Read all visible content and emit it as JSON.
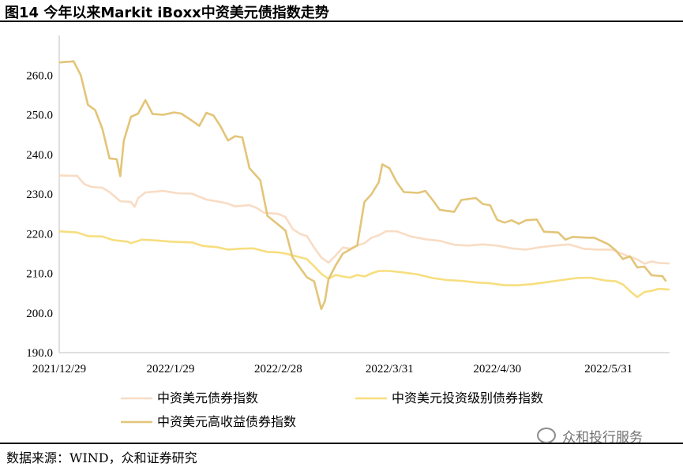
{
  "figure_title": "图14 今年以来Markit iBoxx中资美元债指数走势",
  "source_note": "数据来源：WIND，众和证券研究",
  "watermark": "众和投行服务",
  "colors": {
    "series1": "#F8DCC4",
    "series2": "#F7DE7E",
    "series3": "#E3C578"
  },
  "chart_data": {
    "type": "line",
    "title": "",
    "xlabel": "",
    "ylabel": "",
    "ylim": [
      190,
      270
    ],
    "yticks": [
      "190.0",
      "200.0",
      "210.0",
      "220.0",
      "230.0",
      "240.0",
      "250.0",
      "260.0"
    ],
    "xticks": [
      "2021/12/29",
      "2022/1/29",
      "2022/2/28",
      "2022/3/31",
      "2022/4/30",
      "2022/5/31"
    ],
    "grid": false,
    "legend_position": "bottom",
    "series": [
      {
        "name": "中资美元债券指数",
        "color": "#F8DCC4",
        "points": [
          [
            "2021-12-29",
            234.7
          ],
          [
            "2022-01-03",
            234.6
          ],
          [
            "2022-01-05",
            232.5
          ],
          [
            "2022-01-07",
            231.8
          ],
          [
            "2022-01-10",
            231.6
          ],
          [
            "2022-01-12",
            230.5
          ],
          [
            "2022-01-15",
            228.2
          ],
          [
            "2022-01-18",
            228.0
          ],
          [
            "2022-01-19",
            226.8
          ],
          [
            "2022-01-20",
            229.0
          ],
          [
            "2022-01-22",
            230.4
          ],
          [
            "2022-01-27",
            230.8
          ],
          [
            "2022-01-31",
            230.2
          ],
          [
            "2022-02-04",
            230.1
          ],
          [
            "2022-02-08",
            228.6
          ],
          [
            "2022-02-12",
            228.0
          ],
          [
            "2022-02-14",
            227.6
          ],
          [
            "2022-02-16",
            226.9
          ],
          [
            "2022-02-20",
            227.2
          ],
          [
            "2022-02-22",
            226.5
          ],
          [
            "2022-02-24",
            225.3
          ],
          [
            "2022-02-28",
            225.0
          ],
          [
            "2022-03-02",
            224.2
          ],
          [
            "2022-03-04",
            221.2
          ],
          [
            "2022-03-06",
            220.0
          ],
          [
            "2022-03-08",
            219.4
          ],
          [
            "2022-03-10",
            216.5
          ],
          [
            "2022-03-12",
            214.0
          ],
          [
            "2022-03-14",
            212.7
          ],
          [
            "2022-03-16",
            214.5
          ],
          [
            "2022-03-18",
            216.5
          ],
          [
            "2022-03-20",
            216.2
          ],
          [
            "2022-03-22",
            217.0
          ],
          [
            "2022-03-24",
            217.6
          ],
          [
            "2022-03-26",
            219.0
          ],
          [
            "2022-03-28",
            219.6
          ],
          [
            "2022-03-30",
            220.6
          ],
          [
            "2022-04-02",
            220.6
          ],
          [
            "2022-04-06",
            219.3
          ],
          [
            "2022-04-10",
            218.6
          ],
          [
            "2022-04-14",
            218.2
          ],
          [
            "2022-04-18",
            217.2
          ],
          [
            "2022-04-22",
            217.0
          ],
          [
            "2022-04-26",
            217.3
          ],
          [
            "2022-04-30",
            217.0
          ],
          [
            "2022-05-04",
            216.3
          ],
          [
            "2022-05-08",
            216.0
          ],
          [
            "2022-05-12",
            216.6
          ],
          [
            "2022-05-16",
            217.0
          ],
          [
            "2022-05-20",
            217.3
          ],
          [
            "2022-05-24",
            216.2
          ],
          [
            "2022-05-28",
            216.0
          ],
          [
            "2022-06-01",
            216.0
          ],
          [
            "2022-06-05",
            214.5
          ],
          [
            "2022-06-08",
            213.5
          ],
          [
            "2022-06-10",
            212.4
          ],
          [
            "2022-06-12",
            213.0
          ],
          [
            "2022-06-14",
            212.6
          ],
          [
            "2022-06-17",
            212.5
          ]
        ]
      },
      {
        "name": "中资美元投资级别债券指数",
        "color": "#F7DE7E",
        "points": [
          [
            "2021-12-29",
            220.6
          ],
          [
            "2022-01-03",
            220.3
          ],
          [
            "2022-01-06",
            219.4
          ],
          [
            "2022-01-10",
            219.3
          ],
          [
            "2022-01-13",
            218.4
          ],
          [
            "2022-01-17",
            218.0
          ],
          [
            "2022-01-18",
            217.6
          ],
          [
            "2022-01-21",
            218.5
          ],
          [
            "2022-01-25",
            218.3
          ],
          [
            "2022-01-29",
            218.0
          ],
          [
            "2022-02-04",
            217.8
          ],
          [
            "2022-02-07",
            216.9
          ],
          [
            "2022-02-11",
            216.6
          ],
          [
            "2022-02-14",
            216.0
          ],
          [
            "2022-02-17",
            216.2
          ],
          [
            "2022-02-21",
            216.3
          ],
          [
            "2022-02-25",
            215.4
          ],
          [
            "2022-02-28",
            215.3
          ],
          [
            "2022-03-02",
            215.0
          ],
          [
            "2022-03-05",
            214.3
          ],
          [
            "2022-03-08",
            213.6
          ],
          [
            "2022-03-10",
            211.8
          ],
          [
            "2022-03-12",
            209.9
          ],
          [
            "2022-03-14",
            208.6
          ],
          [
            "2022-03-16",
            209.6
          ],
          [
            "2022-03-18",
            209.2
          ],
          [
            "2022-03-20",
            208.9
          ],
          [
            "2022-03-22",
            209.6
          ],
          [
            "2022-03-24",
            209.2
          ],
          [
            "2022-03-26",
            210.0
          ],
          [
            "2022-03-28",
            210.6
          ],
          [
            "2022-03-31",
            210.6
          ],
          [
            "2022-04-04",
            210.2
          ],
          [
            "2022-04-08",
            209.7
          ],
          [
            "2022-04-12",
            208.8
          ],
          [
            "2022-04-16",
            208.3
          ],
          [
            "2022-04-20",
            208.1
          ],
          [
            "2022-04-24",
            207.7
          ],
          [
            "2022-04-28",
            207.5
          ],
          [
            "2022-05-02",
            207.0
          ],
          [
            "2022-05-06",
            207.0
          ],
          [
            "2022-05-10",
            207.3
          ],
          [
            "2022-05-14",
            207.8
          ],
          [
            "2022-05-18",
            208.3
          ],
          [
            "2022-05-22",
            208.8
          ],
          [
            "2022-05-26",
            208.9
          ],
          [
            "2022-05-30",
            208.2
          ],
          [
            "2022-06-02",
            208.0
          ],
          [
            "2022-06-04",
            207.2
          ],
          [
            "2022-06-06",
            205.5
          ],
          [
            "2022-06-08",
            204.0
          ],
          [
            "2022-06-10",
            205.3
          ],
          [
            "2022-06-12",
            205.6
          ],
          [
            "2022-06-14",
            206.1
          ],
          [
            "2022-06-17",
            205.9
          ]
        ]
      },
      {
        "name": "中资美元高收益债券指数",
        "color": "#E3C578",
        "points": [
          [
            "2021-12-29",
            263.2
          ],
          [
            "2022-01-01",
            263.4
          ],
          [
            "2022-01-02",
            263.5
          ],
          [
            "2022-01-04",
            260.0
          ],
          [
            "2022-01-06",
            252.5
          ],
          [
            "2022-01-08",
            251.2
          ],
          [
            "2022-01-10",
            246.5
          ],
          [
            "2022-01-12",
            239.0
          ],
          [
            "2022-01-14",
            238.8
          ],
          [
            "2022-01-15",
            234.5
          ],
          [
            "2022-01-16",
            243.5
          ],
          [
            "2022-01-18",
            249.5
          ],
          [
            "2022-01-20",
            250.3
          ],
          [
            "2022-01-22",
            253.7
          ],
          [
            "2022-01-24",
            250.2
          ],
          [
            "2022-01-27",
            250.0
          ],
          [
            "2022-01-30",
            250.6
          ],
          [
            "2022-02-01",
            250.3
          ],
          [
            "2022-02-04",
            248.5
          ],
          [
            "2022-02-06",
            247.2
          ],
          [
            "2022-02-08",
            250.5
          ],
          [
            "2022-02-10",
            249.8
          ],
          [
            "2022-02-12",
            247.0
          ],
          [
            "2022-02-14",
            243.5
          ],
          [
            "2022-02-16",
            244.6
          ],
          [
            "2022-02-18",
            244.3
          ],
          [
            "2022-02-20",
            236.5
          ],
          [
            "2022-02-23",
            233.5
          ],
          [
            "2022-02-25",
            224.5
          ],
          [
            "2022-02-28",
            222.3
          ],
          [
            "2022-03-02",
            220.8
          ],
          [
            "2022-03-04",
            214.0
          ],
          [
            "2022-03-06",
            211.5
          ],
          [
            "2022-03-08",
            209.0
          ],
          [
            "2022-03-10",
            208.0
          ],
          [
            "2022-03-12",
            201.0
          ],
          [
            "2022-03-13",
            203.0
          ],
          [
            "2022-03-14",
            208.5
          ],
          [
            "2022-03-16",
            212.0
          ],
          [
            "2022-03-18",
            215.0
          ],
          [
            "2022-03-20",
            216.0
          ],
          [
            "2022-03-22",
            217.0
          ],
          [
            "2022-03-24",
            228.0
          ],
          [
            "2022-03-26",
            230.0
          ],
          [
            "2022-03-28",
            233.0
          ],
          [
            "2022-03-29",
            237.5
          ],
          [
            "2022-03-31",
            236.5
          ],
          [
            "2022-04-02",
            233.0
          ],
          [
            "2022-04-04",
            230.5
          ],
          [
            "2022-04-08",
            230.3
          ],
          [
            "2022-04-10",
            230.8
          ],
          [
            "2022-04-12",
            228.5
          ],
          [
            "2022-04-14",
            226.0
          ],
          [
            "2022-04-18",
            225.5
          ],
          [
            "2022-04-20",
            228.5
          ],
          [
            "2022-04-24",
            229.0
          ],
          [
            "2022-04-26",
            227.5
          ],
          [
            "2022-04-28",
            227.2
          ],
          [
            "2022-04-30",
            223.5
          ],
          [
            "2022-05-02",
            222.8
          ],
          [
            "2022-05-04",
            223.4
          ],
          [
            "2022-05-06",
            222.5
          ],
          [
            "2022-05-08",
            223.4
          ],
          [
            "2022-05-11",
            223.6
          ],
          [
            "2022-05-13",
            220.5
          ],
          [
            "2022-05-17",
            220.3
          ],
          [
            "2022-05-19",
            218.5
          ],
          [
            "2022-05-21",
            219.2
          ],
          [
            "2022-05-25",
            219.0
          ],
          [
            "2022-05-27",
            219.0
          ],
          [
            "2022-05-31",
            217.3
          ],
          [
            "2022-06-02",
            215.8
          ],
          [
            "2022-06-04",
            213.6
          ],
          [
            "2022-06-06",
            214.3
          ],
          [
            "2022-06-08",
            211.5
          ],
          [
            "2022-06-10",
            211.7
          ],
          [
            "2022-06-12",
            209.5
          ],
          [
            "2022-06-15",
            209.3
          ],
          [
            "2022-06-16",
            208.0
          ]
        ]
      }
    ]
  }
}
